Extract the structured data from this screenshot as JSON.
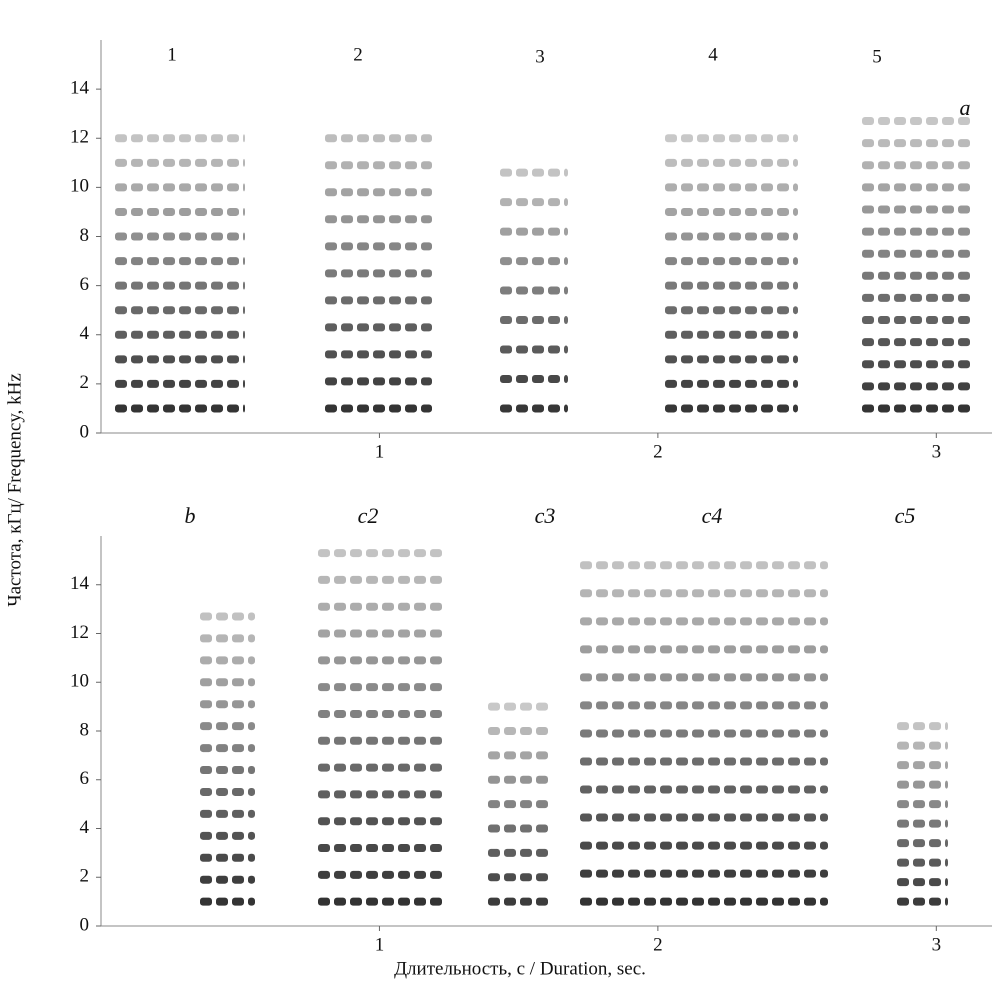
{
  "chart_data": [
    {
      "type": "spectrogram",
      "labels": [
        "1",
        "2",
        "3",
        "4",
        "5",
        "a"
      ],
      "ylabel": "Частота, кГц/ Frequency, kHz",
      "xlim": [
        0,
        3.2
      ],
      "xticks": [
        1,
        2,
        3
      ],
      "ylim": [
        0,
        16
      ],
      "yticks": [
        0,
        2,
        4,
        6,
        8,
        10,
        12,
        14
      ]
    },
    {
      "type": "spectrogram",
      "labels": [
        "b",
        "c2",
        "c3",
        "c4",
        "c5"
      ],
      "xlabel": "Длительность, с / Duration, sec.",
      "xlim": [
        0,
        3.2
      ],
      "xticks": [
        1,
        2,
        3
      ],
      "ylim": [
        0,
        16
      ],
      "yticks": [
        0,
        2,
        4,
        6,
        8,
        10,
        12,
        14
      ]
    }
  ]
}
